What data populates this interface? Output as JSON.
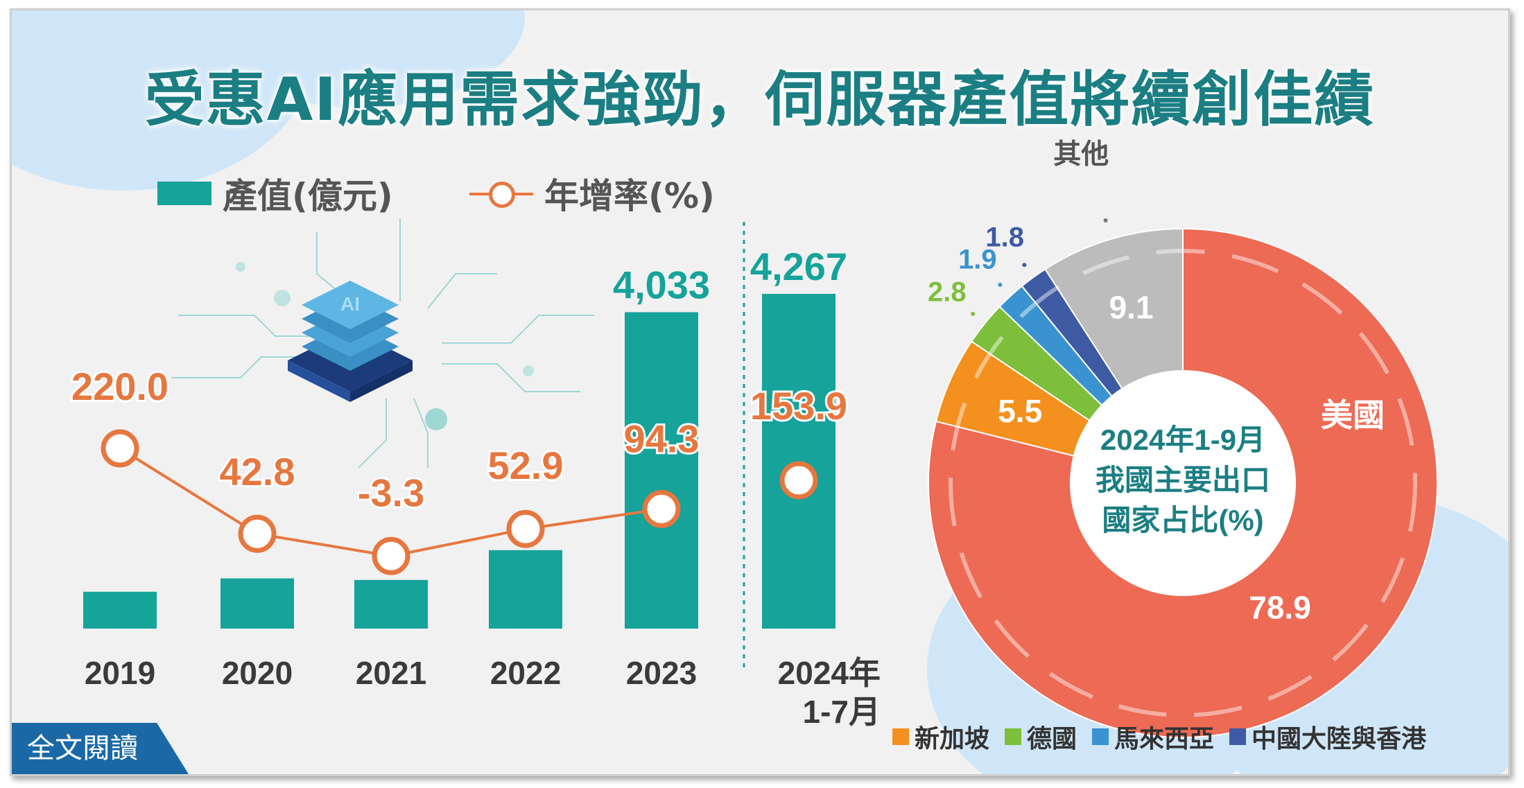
{
  "header": {
    "title": "受惠AI應用需求強勁，伺服器產值將續創佳績"
  },
  "legend": {
    "bar_label": "產值(億元)",
    "line_label": "年增率(%)"
  },
  "cta": {
    "label": "全文閱讀"
  },
  "colors": {
    "bar": "#15a39a",
    "line": "#e6773f",
    "title": "#1b7e82"
  },
  "chart_data": [
    {
      "type": "bar",
      "categories": [
        "2019",
        "2020",
        "2021",
        "2022",
        "2023",
        "2024年\n1-7月"
      ],
      "series": [
        {
          "name": "產值(億元)",
          "values": [
            470,
            640,
            620,
            1000,
            4033,
            4267
          ],
          "labels": [
            "",
            "",
            "",
            "",
            "4,033",
            "4,267"
          ]
        },
        {
          "name": "年增率(%)",
          "values": [
            220.0,
            42.8,
            -3.3,
            52.9,
            94.3,
            153.9
          ],
          "labels": [
            "220.0",
            "42.8",
            "-3.3",
            "52.9",
            "94.3",
            "153.9"
          ]
        }
      ],
      "xlabel": "",
      "ylabel": ""
    },
    {
      "type": "pie",
      "title": "2024年1-9月\n我國主要出口\n國家占比(%)",
      "slices": [
        {
          "name": "美國",
          "value": 78.9,
          "label": "78.9",
          "color": "#ed6a55"
        },
        {
          "name": "新加坡",
          "value": 5.5,
          "label": "5.5",
          "color": "#f4911e"
        },
        {
          "name": "德國",
          "value": 2.8,
          "label": "2.8",
          "color": "#7dbf3b"
        },
        {
          "name": "馬來西亞",
          "value": 1.9,
          "label": "1.9",
          "color": "#3a93d0"
        },
        {
          "name": "中國大陸與香港",
          "value": 1.8,
          "label": "1.8",
          "color": "#3e5aa3"
        },
        {
          "name": "其他",
          "value": 9.1,
          "label": "9.1",
          "color": "#bcbcbc"
        }
      ],
      "other_label": "其他",
      "legend": [
        "新加坡",
        "德國",
        "馬來西亞",
        "中國大陸與香港"
      ]
    }
  ]
}
